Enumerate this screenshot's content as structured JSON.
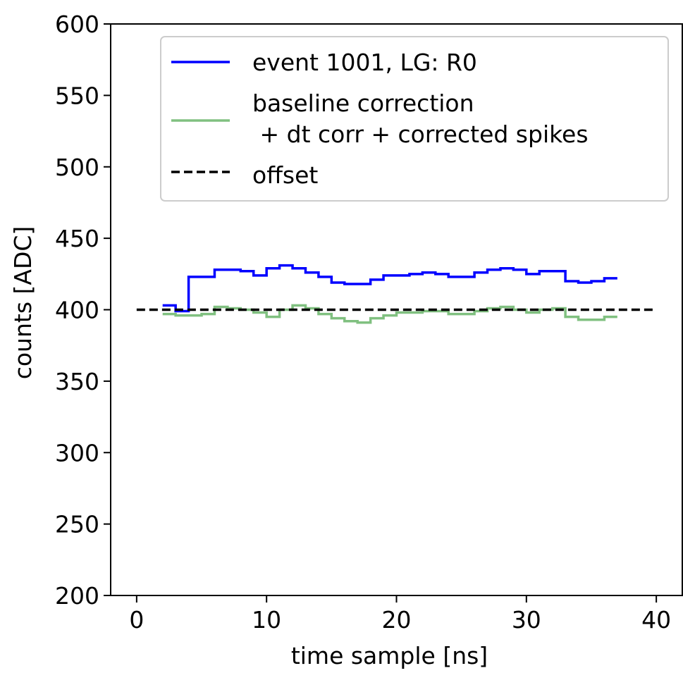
{
  "chart_data": {
    "type": "line",
    "xlabel": "time sample [ns]",
    "ylabel": "counts [ADC]",
    "xlim": [
      -2,
      42
    ],
    "ylim": [
      200,
      600
    ],
    "xticks": [
      0,
      10,
      20,
      30,
      40
    ],
    "yticks": [
      200,
      250,
      300,
      350,
      400,
      450,
      500,
      550,
      600
    ],
    "grid": false,
    "legend_position": "top-right",
    "series": [
      {
        "name": "event 1001, LG: R0",
        "color": "#0000ff",
        "step": true,
        "x": [
          2,
          3,
          4,
          5,
          6,
          7,
          8,
          9,
          10,
          11,
          12,
          13,
          14,
          15,
          16,
          17,
          18,
          19,
          20,
          21,
          22,
          23,
          24,
          25,
          26,
          27,
          28,
          29,
          30,
          31,
          32,
          33,
          34,
          35,
          36,
          37
        ],
        "y": [
          403,
          399,
          423,
          423,
          428,
          428,
          427,
          424,
          429,
          431,
          429,
          426,
          423,
          419,
          418,
          418,
          421,
          424,
          424,
          425,
          426,
          425,
          423,
          423,
          426,
          428,
          429,
          428,
          425,
          427,
          427,
          420,
          419,
          420,
          422,
          422
        ]
      },
      {
        "name": "baseline correction\n + dt corr + corrected spikes",
        "color": "#80c080",
        "step": true,
        "x": [
          2,
          3,
          4,
          5,
          6,
          7,
          8,
          9,
          10,
          11,
          12,
          13,
          14,
          15,
          16,
          17,
          18,
          19,
          20,
          21,
          22,
          23,
          24,
          25,
          26,
          27,
          28,
          29,
          30,
          31,
          32,
          33,
          34,
          35,
          36,
          37
        ],
        "y": [
          397,
          396,
          396,
          397,
          402,
          401,
          400,
          398,
          395,
          400,
          403,
          401,
          397,
          394,
          392,
          391,
          394,
          396,
          398,
          398,
          399,
          399,
          397,
          397,
          399,
          401,
          402,
          400,
          398,
          400,
          401,
          395,
          393,
          393,
          395,
          395
        ]
      },
      {
        "name": "offset",
        "color": "#000000",
        "dashed": true,
        "x": [
          0,
          40
        ],
        "y": [
          400,
          400
        ]
      }
    ]
  }
}
